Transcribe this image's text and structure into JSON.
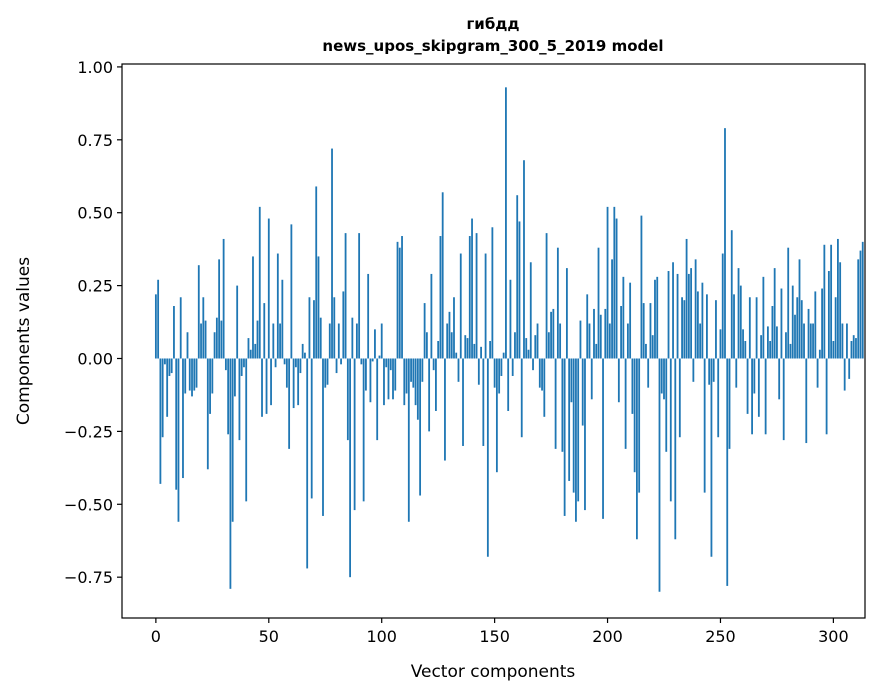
{
  "chart_data": {
    "type": "bar",
    "title": "гибдд",
    "subtitle": "news_upos_skipgram_300_5_2019 model",
    "xlabel": "Vector components",
    "ylabel": "Components values",
    "xlim": [
      -15,
      314
    ],
    "ylim": [
      -0.89,
      1.01
    ],
    "xticks": [
      0,
      50,
      100,
      150,
      200,
      250,
      300
    ],
    "xtick_labels": [
      "0",
      "50",
      "100",
      "150",
      "200",
      "250",
      "300"
    ],
    "yticks": [
      1.0,
      0.75,
      0.5,
      0.25,
      0.0,
      -0.25,
      -0.5,
      -0.75
    ],
    "ytick_labels": [
      "1.00",
      "0.75",
      "0.50",
      "0.25",
      "0.00",
      "−0.25",
      "−0.50",
      "−0.75"
    ],
    "bar_color": "#1f77b4",
    "grid": false,
    "values": [
      0.22,
      0.27,
      -0.43,
      -0.27,
      -0.02,
      -0.2,
      -0.06,
      -0.05,
      0.18,
      -0.45,
      -0.56,
      0.21,
      -0.41,
      -0.12,
      0.09,
      -0.11,
      -0.13,
      -0.11,
      -0.1,
      0.32,
      0.12,
      0.21,
      0.13,
      -0.38,
      -0.19,
      -0.12,
      0.09,
      0.14,
      0.34,
      0.13,
      0.41,
      -0.04,
      -0.26,
      -0.79,
      -0.56,
      -0.13,
      0.25,
      -0.28,
      -0.06,
      -0.03,
      -0.49,
      0.07,
      0.03,
      0.35,
      0.05,
      0.13,
      0.52,
      -0.2,
      0.19,
      -0.19,
      0.48,
      -0.16,
      0.12,
      -0.03,
      0.36,
      0.12,
      0.27,
      -0.02,
      -0.1,
      -0.31,
      0.46,
      -0.17,
      -0.03,
      -0.16,
      -0.05,
      0.05,
      0.02,
      -0.72,
      0.21,
      -0.48,
      0.2,
      0.59,
      0.35,
      0.14,
      -0.54,
      -0.1,
      -0.09,
      0.12,
      0.72,
      0.21,
      -0.05,
      0.12,
      -0.02,
      0.23,
      0.43,
      -0.28,
      -0.75,
      0.14,
      -0.52,
      0.12,
      0.43,
      -0.02,
      -0.49,
      -0.11,
      0.29,
      -0.15,
      -0.01,
      0.1,
      -0.28,
      0.01,
      0.12,
      -0.16,
      -0.03,
      -0.14,
      -0.04,
      -0.14,
      -0.11,
      0.4,
      0.38,
      0.42,
      -0.16,
      -0.12,
      -0.56,
      -0.08,
      -0.1,
      -0.16,
      -0.21,
      -0.47,
      -0.08,
      0.19,
      0.09,
      -0.25,
      0.29,
      -0.04,
      -0.18,
      0.06,
      0.42,
      0.57,
      -0.35,
      0.12,
      0.16,
      0.09,
      0.21,
      0.02,
      -0.08,
      0.36,
      -0.3,
      0.08,
      0.07,
      0.42,
      0.48,
      0.05,
      0.43,
      -0.09,
      0.04,
      -0.3,
      0.36,
      -0.68,
      0.06,
      0.45,
      -0.1,
      -0.39,
      -0.12,
      -0.06,
      0.02,
      0.93,
      -0.18,
      0.27,
      -0.06,
      0.09,
      0.56,
      0.47,
      -0.27,
      0.68,
      0.07,
      0.03,
      0.33,
      -0.04,
      0.08,
      0.12,
      -0.1,
      -0.11,
      -0.2,
      0.43,
      0.09,
      0.16,
      0.17,
      -0.31,
      0.38,
      0.12,
      -0.32,
      -0.54,
      0.31,
      -0.42,
      -0.15,
      -0.46,
      -0.56,
      -0.49,
      0.13,
      -0.23,
      -0.52,
      0.22,
      0.12,
      -0.14,
      0.17,
      0.05,
      0.38,
      0.15,
      -0.55,
      0.17,
      0.52,
      0.12,
      0.34,
      0.52,
      0.48,
      -0.15,
      0.18,
      0.28,
      -0.31,
      0.12,
      0.26,
      -0.19,
      -0.39,
      -0.62,
      -0.46,
      0.49,
      0.19,
      0.05,
      -0.1,
      0.19,
      0.08,
      0.27,
      0.28,
      -0.8,
      -0.12,
      -0.14,
      -0.32,
      0.3,
      -0.49,
      0.33,
      -0.62,
      0.29,
      -0.27,
      0.21,
      0.2,
      0.41,
      0.29,
      0.31,
      -0.08,
      0.34,
      0.23,
      0.12,
      0.26,
      -0.46,
      0.22,
      -0.09,
      -0.68,
      -0.08,
      0.2,
      -0.27,
      0.1,
      0.36,
      0.79,
      -0.78,
      -0.31,
      0.44,
      0.22,
      -0.1,
      0.31,
      0.25,
      0.1,
      0.06,
      -0.19,
      0.21,
      -0.26,
      -0.12,
      0.21,
      -0.2,
      0.08,
      0.28,
      -0.26,
      0.11,
      0.06,
      0.18,
      0.31,
      0.11,
      -0.14,
      0.24,
      -0.28,
      0.09,
      0.38,
      0.05,
      0.25,
      0.15,
      0.21,
      0.34,
      0.2,
      0.12,
      -0.29,
      0.17,
      0.12,
      0.12,
      0.23,
      -0.1,
      0.03,
      0.24,
      0.39,
      -0.26,
      0.3,
      0.39,
      0.06,
      0.21,
      0.41,
      0.33,
      0.12,
      -0.11,
      0.12,
      -0.07,
      0.06,
      0.08,
      0.07,
      0.34,
      0.37,
      0.4
    ]
  }
}
